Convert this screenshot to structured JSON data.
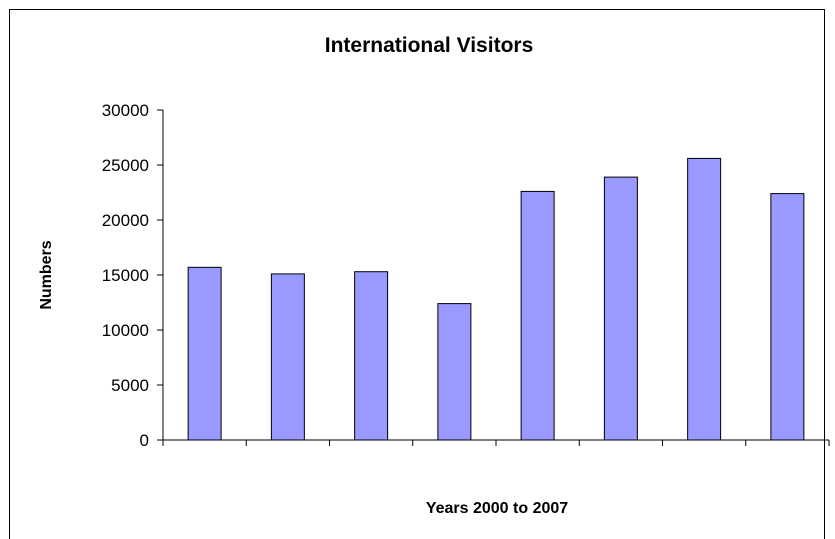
{
  "chart_data": {
    "type": "bar",
    "title": "International Visitors",
    "xlabel": "Years 2000 to 2007",
    "ylabel": "Numbers",
    "categories": [
      "",
      "",
      "",
      "",
      "",
      "",
      "",
      ""
    ],
    "values": [
      15700,
      15100,
      15300,
      12400,
      22600,
      23900,
      25600,
      22400
    ],
    "ylim": [
      0,
      30000
    ],
    "yticks": [
      "0",
      "5000",
      "10000",
      "15000",
      "20000",
      "25000",
      "30000"
    ],
    "grid": false,
    "legend": "none",
    "bar_color": "#9999ff",
    "border_color": "#000000"
  }
}
